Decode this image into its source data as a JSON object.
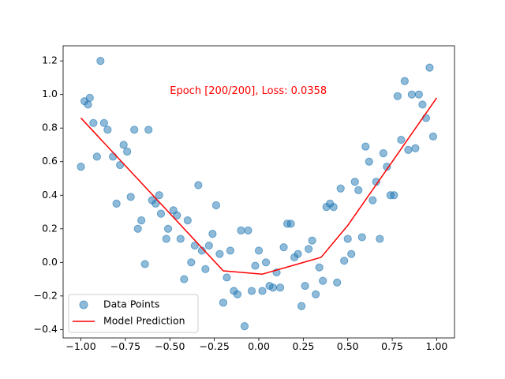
{
  "chart_data": {
    "type": "scatter",
    "title": "",
    "xlabel": "",
    "ylabel": "",
    "xlim": [
      -1.1,
      1.1
    ],
    "ylim": [
      -0.45,
      1.29
    ],
    "xticks": [
      -1.0,
      -0.75,
      -0.5,
      -0.25,
      0.0,
      0.25,
      0.5,
      0.75,
      1.0
    ],
    "xtick_labels": [
      "−1.00",
      "−0.75",
      "−0.50",
      "−0.25",
      "0.00",
      "0.25",
      "0.50",
      "0.75",
      "1.00"
    ],
    "yticks": [
      -0.4,
      -0.2,
      0.0,
      0.2,
      0.4,
      0.6,
      0.8,
      1.0,
      1.2
    ],
    "ytick_labels": [
      "−0.4",
      "−0.2",
      "0.0",
      "0.2",
      "0.4",
      "0.6",
      "0.8",
      "1.0",
      "1.2"
    ],
    "grid": false,
    "legend_position": "lower-left",
    "annotation": {
      "text": "Epoch [200/200], Loss: 0.0358",
      "x": -0.5,
      "y": 1.0,
      "color": "#ff0000"
    },
    "series": [
      {
        "name": "Data Points",
        "kind": "scatter",
        "color": "#1f77b4",
        "points": [
          [
            -1.0,
            0.57
          ],
          [
            -0.98,
            0.96
          ],
          [
            -0.96,
            0.94
          ],
          [
            -0.95,
            0.98
          ],
          [
            -0.93,
            0.83
          ],
          [
            -0.91,
            0.63
          ],
          [
            -0.89,
            1.2
          ],
          [
            -0.87,
            0.83
          ],
          [
            -0.85,
            0.79
          ],
          [
            -0.82,
            0.63
          ],
          [
            -0.8,
            0.35
          ],
          [
            -0.78,
            0.58
          ],
          [
            -0.76,
            0.7
          ],
          [
            -0.74,
            0.66
          ],
          [
            -0.72,
            0.39
          ],
          [
            -0.7,
            0.79
          ],
          [
            -0.68,
            0.2
          ],
          [
            -0.66,
            0.25
          ],
          [
            -0.64,
            -0.01
          ],
          [
            -0.62,
            0.79
          ],
          [
            -0.6,
            0.37
          ],
          [
            -0.58,
            0.35
          ],
          [
            -0.56,
            0.4
          ],
          [
            -0.55,
            0.29
          ],
          [
            -0.52,
            0.14
          ],
          [
            -0.51,
            0.2
          ],
          [
            -0.48,
            0.31
          ],
          [
            -0.46,
            0.28
          ],
          [
            -0.44,
            0.14
          ],
          [
            -0.42,
            -0.1
          ],
          [
            -0.4,
            0.25
          ],
          [
            -0.38,
            0.0
          ],
          [
            -0.36,
            0.1
          ],
          [
            -0.34,
            0.46
          ],
          [
            -0.32,
            0.07
          ],
          [
            -0.3,
            -0.04
          ],
          [
            -0.28,
            0.1
          ],
          [
            -0.26,
            0.17
          ],
          [
            -0.24,
            0.34
          ],
          [
            -0.22,
            0.05
          ],
          [
            -0.2,
            -0.24
          ],
          [
            -0.18,
            -0.09
          ],
          [
            -0.16,
            0.07
          ],
          [
            -0.14,
            -0.17
          ],
          [
            -0.12,
            -0.19
          ],
          [
            -0.1,
            0.19
          ],
          [
            -0.08,
            -0.38
          ],
          [
            -0.06,
            0.19
          ],
          [
            -0.04,
            -0.17
          ],
          [
            -0.02,
            -0.02
          ],
          [
            0.0,
            0.07
          ],
          [
            0.02,
            -0.17
          ],
          [
            0.04,
            0.0
          ],
          [
            0.06,
            -0.14
          ],
          [
            0.08,
            -0.15
          ],
          [
            0.1,
            -0.06
          ],
          [
            0.12,
            -0.15
          ],
          [
            0.14,
            0.09
          ],
          [
            0.16,
            0.23
          ],
          [
            0.18,
            0.23
          ],
          [
            0.2,
            0.03
          ],
          [
            0.22,
            0.05
          ],
          [
            0.24,
            -0.26
          ],
          [
            0.26,
            -0.14
          ],
          [
            0.28,
            0.08
          ],
          [
            0.3,
            0.13
          ],
          [
            0.32,
            -0.19
          ],
          [
            0.34,
            -0.03
          ],
          [
            0.36,
            -0.11
          ],
          [
            0.38,
            0.33
          ],
          [
            0.4,
            0.35
          ],
          [
            0.42,
            0.33
          ],
          [
            0.44,
            -0.12
          ],
          [
            0.46,
            0.44
          ],
          [
            0.48,
            0.01
          ],
          [
            0.5,
            0.14
          ],
          [
            0.52,
            0.05
          ],
          [
            0.54,
            0.48
          ],
          [
            0.56,
            0.43
          ],
          [
            0.58,
            0.15
          ],
          [
            0.6,
            0.69
          ],
          [
            0.62,
            0.6
          ],
          [
            0.64,
            0.37
          ],
          [
            0.66,
            0.48
          ],
          [
            0.68,
            0.14
          ],
          [
            0.7,
            0.65
          ],
          [
            0.72,
            0.57
          ],
          [
            0.74,
            0.4
          ],
          [
            0.76,
            0.4
          ],
          [
            0.78,
            0.99
          ],
          [
            0.8,
            0.73
          ],
          [
            0.82,
            1.08
          ],
          [
            0.84,
            0.67
          ],
          [
            0.86,
            1.0
          ],
          [
            0.88,
            0.68
          ],
          [
            0.9,
            1.0
          ],
          [
            0.92,
            0.94
          ],
          [
            0.94,
            0.86
          ],
          [
            0.96,
            1.16
          ],
          [
            0.98,
            0.75
          ]
        ]
      },
      {
        "name": "Model Prediction",
        "kind": "line",
        "color": "#ff0000",
        "points": [
          [
            -1.0,
            0.86
          ],
          [
            -0.2,
            -0.05
          ],
          [
            0.02,
            -0.07
          ],
          [
            0.35,
            0.03
          ],
          [
            0.5,
            0.22
          ],
          [
            1.0,
            0.98
          ]
        ]
      }
    ]
  }
}
